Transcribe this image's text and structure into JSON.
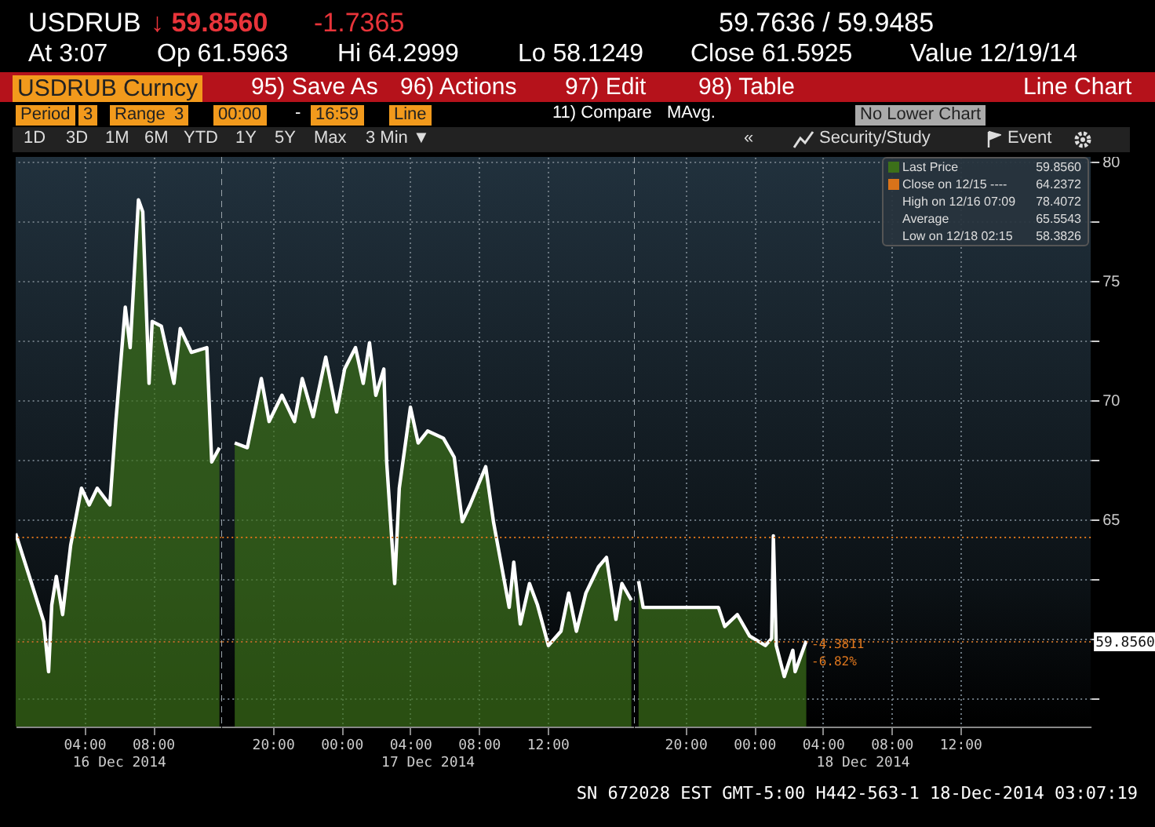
{
  "chart_data": [
    {
      "type": "area",
      "title": "USDRUB",
      "xlabel": "16 Dec 2014",
      "x": [
        "2014-12-16T00:00",
        "2014-12-16T01:38",
        "2014-12-16T01:55",
        "2014-12-16T02:06",
        "2014-12-16T02:22",
        "2014-12-16T02:44",
        "2014-12-16T03:12",
        "2014-12-16T03:50",
        "2014-12-16T04:17",
        "2014-12-16T04:45",
        "2014-12-16T05:29",
        "2014-12-16T05:50",
        "2014-12-16T06:23",
        "2014-12-16T06:40",
        "2014-12-16T07:09",
        "2014-12-16T07:24",
        "2014-12-16T07:46",
        "2014-12-16T07:57",
        "2014-12-16T08:29",
        "2014-12-16T09:13",
        "2014-12-16T09:35",
        "2014-12-16T10:14",
        "2014-12-16T11:08",
        "2014-12-16T11:25",
        "2014-12-16T11:52"
      ],
      "series": [
        {
          "color": "#3c7019",
          "values": [
            64.4,
            60.7,
            58.6,
            61.4,
            62.6,
            61.0,
            63.9,
            66.3,
            65.6,
            66.3,
            65.6,
            69.1,
            73.9,
            72.2,
            78.4,
            77.9,
            70.7,
            73.3,
            73.1,
            70.7,
            73.0,
            72.0,
            72.2,
            67.4,
            68.0
          ]
        }
      ],
      "xlim": [
        "2014-12-16T00:00",
        "2014-12-16T12:00"
      ],
      "xticks": [
        {
          "value": "2014-12-16T04:00",
          "label": "04:00"
        },
        {
          "value": "2014-12-16T08:00",
          "label": "08:00"
        }
      ],
      "ylim": [
        56.3,
        80.2
      ],
      "yticks": [
        {
          "value": 57.5,
          "label": null
        },
        {
          "value": 60,
          "label": null
        },
        {
          "value": 62.5,
          "label": null
        },
        65,
        {
          "value": 67.5,
          "label": null
        },
        70,
        {
          "value": 72.5,
          "label": null
        },
        75,
        {
          "value": 77.5,
          "label": null
        },
        80
      ],
      "tick_labels": "x",
      "grid": true,
      "ref_lines": [
        {
          "axis": "y",
          "value": 64.2372,
          "color": "#d9731a",
          "line_style": "dotted"
        },
        {
          "axis": "y",
          "value": 59.856,
          "color": "#b86a2a",
          "line_style": "dotted"
        }
      ],
      "annotations": [
        "↓ 59.8560",
        "-1.7365",
        "59.7636 / 59.9485",
        "At 3:07",
        "Op 61.5963",
        "Hi 64.2999",
        "Lo 58.1249",
        "Close 61.5925",
        "Value 12/19/14",
        "USDRUB Curncy",
        "95) Save As",
        "96) Actions",
        "97) Edit",
        "98) Table",
        "Line Chart",
        "Period",
        "3",
        "Range",
        "3",
        "00:00",
        "-",
        "16:59",
        "Line",
        "11) Compare",
        "MAvg.",
        "No Lower Chart",
        "1D",
        "3D",
        "1M",
        "6M",
        "YTD",
        "1Y",
        "5Y",
        "Max",
        "3 Min ▼",
        "«",
        "Security/Study",
        "Event"
      ]
    },
    {
      "type": "area",
      "xlabel": "17 Dec 2014",
      "x": [
        "2014-12-16T17:47",
        "2014-12-16T18:31",
        "2014-12-16T19:20",
        "2014-12-16T19:47",
        "2014-12-16T20:32",
        "2014-12-16T21:16",
        "2014-12-16T21:43",
        "2014-12-16T22:21",
        "2014-12-16T23:05",
        "2014-12-16T23:43",
        "2014-12-17T00:11",
        "2014-12-17T00:49",
        "2014-12-17T01:16",
        "2014-12-17T01:38",
        "2014-12-17T02:00",
        "2014-12-17T02:28",
        "2014-12-17T02:38",
        "2014-12-17T03:06",
        "2014-12-17T03:22",
        "2014-12-17T04:01",
        "2014-12-17T04:28",
        "2014-12-17T05:01",
        "2014-12-17T05:56",
        "2014-12-17T06:34",
        "2014-12-17T07:02",
        "2014-12-17T07:29",
        "2014-12-17T08:24",
        "2014-12-17T08:51",
        "2014-12-17T09:46",
        "2014-12-17T10:02",
        "2014-12-17T10:25",
        "2014-12-17T10:57",
        "2014-12-17T11:25",
        "2014-12-17T12:03",
        "2014-12-17T12:47",
        "2014-12-17T13:14",
        "2014-12-17T13:41",
        "2014-12-17T14:14",
        "2014-12-17T14:58",
        "2014-12-17T15:26",
        "2014-12-17T15:59",
        "2014-12-17T16:20",
        "2014-12-17T16:53"
      ],
      "series": [
        {
          "color": "#3c7019",
          "values": [
            68.2,
            68.0,
            70.9,
            69.1,
            70.2,
            69.1,
            70.9,
            69.3,
            71.8,
            69.5,
            71.3,
            72.2,
            70.7,
            72.4,
            70.2,
            71.3,
            67.4,
            62.3,
            66.3,
            69.7,
            68.2,
            68.7,
            68.4,
            67.6,
            64.9,
            65.6,
            67.2,
            64.9,
            61.3,
            63.2,
            60.6,
            62.3,
            61.4,
            59.7,
            60.3,
            61.9,
            60.3,
            61.9,
            63.0,
            63.4,
            60.8,
            62.3,
            61.6
          ]
        }
      ],
      "xlim": [
        "2014-12-16T17:00",
        "2014-12-17T17:00"
      ],
      "xticks": [
        {
          "value": "2014-12-16T20:00",
          "label": "20:00"
        },
        {
          "value": "2014-12-17T00:00",
          "label": "00:00"
        },
        {
          "value": "2014-12-17T04:00",
          "label": "04:00"
        },
        {
          "value": "2014-12-17T08:00",
          "label": "08:00"
        },
        {
          "value": "2014-12-17T12:00",
          "label": "12:00"
        }
      ],
      "ylim": [
        56.3,
        80.2
      ],
      "yticks": [
        {
          "value": 57.5,
          "label": null
        },
        {
          "value": 60,
          "label": null
        },
        {
          "value": 62.5,
          "label": null
        },
        65,
        {
          "value": 67.5,
          "label": null
        },
        70,
        {
          "value": 72.5,
          "label": null
        },
        75,
        {
          "value": 77.5,
          "label": null
        },
        80
      ],
      "tick_labels": "x",
      "grid": true,
      "ref_lines": [
        {
          "axis": "x",
          "value": "2014-12-16T17:00",
          "color": "#9aa4ab",
          "line_style": "dashed"
        },
        {
          "axis": "y",
          "value": 64.2372,
          "color": "#d9731a",
          "line_style": "dotted"
        },
        {
          "axis": "y",
          "value": 59.856,
          "color": "#b86a2a",
          "line_style": "dotted"
        }
      ]
    },
    {
      "type": "area",
      "xlabel": "18 Dec 2014",
      "x": [
        "2014-12-17T17:16",
        "2014-12-17T17:32",
        "2014-12-17T21:55",
        "2014-12-17T22:17",
        "2014-12-17T23:01",
        "2014-12-17T23:44",
        "2014-12-18T00:39",
        "2014-12-18T01:01",
        "2014-12-18T01:07",
        "2014-12-18T01:17",
        "2014-12-18T01:45",
        "2014-12-18T02:15",
        "2014-12-18T02:23",
        "2014-12-18T03:02"
      ],
      "series": [
        {
          "name": "Last Price",
          "color": "#3c7019",
          "values": [
            62.4,
            61.3,
            61.3,
            60.5,
            61.0,
            60.1,
            59.7,
            60.0,
            64.3,
            59.7,
            58.4,
            59.5,
            58.6,
            59.9
          ]
        }
      ],
      "xlim": [
        "2014-12-17T17:00",
        "2014-12-18T19:36"
      ],
      "xticks": [
        {
          "value": "2014-12-17T20:00",
          "label": "20:00"
        },
        {
          "value": "2014-12-18T00:00",
          "label": "00:00"
        },
        {
          "value": "2014-12-18T04:00",
          "label": "04:00"
        },
        {
          "value": "2014-12-18T08:00",
          "label": "08:00"
        },
        {
          "value": "2014-12-18T12:00",
          "label": "12:00"
        }
      ],
      "ylim": [
        56.3,
        80.2
      ],
      "yticks": [
        {
          "value": 57.5,
          "label": null
        },
        {
          "value": 60,
          "label": null
        },
        {
          "value": 62.5,
          "label": null
        },
        65,
        {
          "value": 67.5,
          "label": null
        },
        70,
        {
          "value": 72.5,
          "label": null
        },
        75,
        {
          "value": 77.5,
          "label": null
        },
        80
      ],
      "grid": true,
      "legend": "top right",
      "ref_lines": [
        {
          "axis": "x",
          "value": "2014-12-17T17:00",
          "color": "#9aa4ab",
          "line_style": "dashed"
        },
        {
          "axis": "y",
          "value": 64.2372,
          "color": "#d9731a",
          "line_style": "dotted"
        },
        {
          "axis": "y",
          "value": 59.856,
          "label": "59.8560",
          "color": "#b86a2a",
          "line_style": "dotted"
        }
      ],
      "annotations": [
        "59.8560",
        "Close on 12/15 ----",
        "64.2372",
        "High on 12/16 07:09",
        "78.4072",
        "Average",
        "65.5543",
        "Low on 12/18 02:15",
        "58.3826",
        "SN 672028 EST  GMT-5:00 H442-563-1 18-Dec-2014 03:07:19",
        "-4.3811",
        "-6.82%"
      ]
    }
  ]
}
